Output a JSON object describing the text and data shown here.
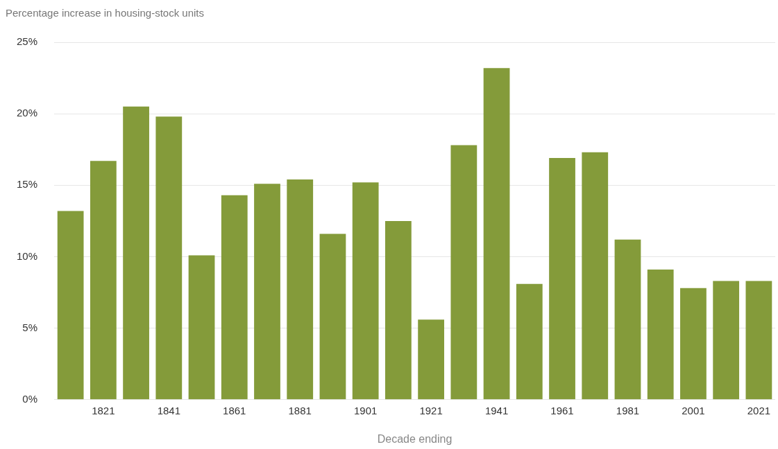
{
  "chart_data": {
    "type": "bar",
    "ylabel": "Percentage increase in housing-stock units",
    "xlabel": "Decade ending",
    "categories": [
      null,
      "1821",
      null,
      "1841",
      null,
      "1861",
      null,
      "1881",
      null,
      "1901",
      null,
      "1921",
      null,
      "1941",
      null,
      "1961",
      null,
      "1981",
      null,
      "2001",
      null,
      "2021"
    ],
    "values": [
      13.2,
      16.7,
      20.5,
      19.8,
      10.1,
      14.3,
      15.1,
      15.4,
      11.6,
      15.2,
      12.5,
      5.6,
      17.8,
      23.2,
      8.1,
      16.9,
      17.3,
      11.2,
      9.1,
      7.8,
      8.3,
      8.3
    ],
    "color": "#849b3a",
    "ylim": [
      0,
      25
    ],
    "yticks": [
      {
        "value": 0,
        "label": "0%"
      },
      {
        "value": 5,
        "label": "5%"
      },
      {
        "value": 10,
        "label": "10%"
      },
      {
        "value": 15,
        "label": "15%"
      },
      {
        "value": 20,
        "label": "20%"
      },
      {
        "value": 25,
        "label": "25%"
      }
    ],
    "grid": "y",
    "legend": false
  }
}
